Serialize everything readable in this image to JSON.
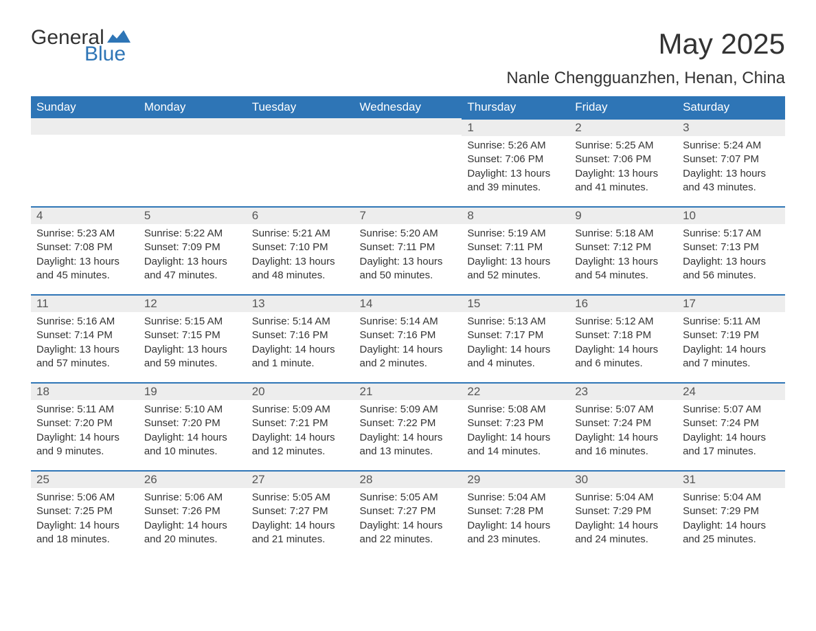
{
  "logo": {
    "text_general": "General",
    "text_blue": "Blue"
  },
  "title": "May 2025",
  "subtitle": "Nanle Chengguanzhen, Henan, China",
  "colors": {
    "header_bg": "#2e75b6",
    "header_text": "#ffffff",
    "daynum_bg": "#ededed",
    "row_border": "#2e75b6",
    "body_text": "#333333",
    "logo_blue": "#2e75b6"
  },
  "weekdays": [
    "Sunday",
    "Monday",
    "Tuesday",
    "Wednesday",
    "Thursday",
    "Friday",
    "Saturday"
  ],
  "weeks": [
    [
      null,
      null,
      null,
      null,
      {
        "n": "1",
        "sunrise": "5:26 AM",
        "sunset": "7:06 PM",
        "daylight": "13 hours and 39 minutes."
      },
      {
        "n": "2",
        "sunrise": "5:25 AM",
        "sunset": "7:06 PM",
        "daylight": "13 hours and 41 minutes."
      },
      {
        "n": "3",
        "sunrise": "5:24 AM",
        "sunset": "7:07 PM",
        "daylight": "13 hours and 43 minutes."
      }
    ],
    [
      {
        "n": "4",
        "sunrise": "5:23 AM",
        "sunset": "7:08 PM",
        "daylight": "13 hours and 45 minutes."
      },
      {
        "n": "5",
        "sunrise": "5:22 AM",
        "sunset": "7:09 PM",
        "daylight": "13 hours and 47 minutes."
      },
      {
        "n": "6",
        "sunrise": "5:21 AM",
        "sunset": "7:10 PM",
        "daylight": "13 hours and 48 minutes."
      },
      {
        "n": "7",
        "sunrise": "5:20 AM",
        "sunset": "7:11 PM",
        "daylight": "13 hours and 50 minutes."
      },
      {
        "n": "8",
        "sunrise": "5:19 AM",
        "sunset": "7:11 PM",
        "daylight": "13 hours and 52 minutes."
      },
      {
        "n": "9",
        "sunrise": "5:18 AM",
        "sunset": "7:12 PM",
        "daylight": "13 hours and 54 minutes."
      },
      {
        "n": "10",
        "sunrise": "5:17 AM",
        "sunset": "7:13 PM",
        "daylight": "13 hours and 56 minutes."
      }
    ],
    [
      {
        "n": "11",
        "sunrise": "5:16 AM",
        "sunset": "7:14 PM",
        "daylight": "13 hours and 57 minutes."
      },
      {
        "n": "12",
        "sunrise": "5:15 AM",
        "sunset": "7:15 PM",
        "daylight": "13 hours and 59 minutes."
      },
      {
        "n": "13",
        "sunrise": "5:14 AM",
        "sunset": "7:16 PM",
        "daylight": "14 hours and 1 minute."
      },
      {
        "n": "14",
        "sunrise": "5:14 AM",
        "sunset": "7:16 PM",
        "daylight": "14 hours and 2 minutes."
      },
      {
        "n": "15",
        "sunrise": "5:13 AM",
        "sunset": "7:17 PM",
        "daylight": "14 hours and 4 minutes."
      },
      {
        "n": "16",
        "sunrise": "5:12 AM",
        "sunset": "7:18 PM",
        "daylight": "14 hours and 6 minutes."
      },
      {
        "n": "17",
        "sunrise": "5:11 AM",
        "sunset": "7:19 PM",
        "daylight": "14 hours and 7 minutes."
      }
    ],
    [
      {
        "n": "18",
        "sunrise": "5:11 AM",
        "sunset": "7:20 PM",
        "daylight": "14 hours and 9 minutes."
      },
      {
        "n": "19",
        "sunrise": "5:10 AM",
        "sunset": "7:20 PM",
        "daylight": "14 hours and 10 minutes."
      },
      {
        "n": "20",
        "sunrise": "5:09 AM",
        "sunset": "7:21 PM",
        "daylight": "14 hours and 12 minutes."
      },
      {
        "n": "21",
        "sunrise": "5:09 AM",
        "sunset": "7:22 PM",
        "daylight": "14 hours and 13 minutes."
      },
      {
        "n": "22",
        "sunrise": "5:08 AM",
        "sunset": "7:23 PM",
        "daylight": "14 hours and 14 minutes."
      },
      {
        "n": "23",
        "sunrise": "5:07 AM",
        "sunset": "7:24 PM",
        "daylight": "14 hours and 16 minutes."
      },
      {
        "n": "24",
        "sunrise": "5:07 AM",
        "sunset": "7:24 PM",
        "daylight": "14 hours and 17 minutes."
      }
    ],
    [
      {
        "n": "25",
        "sunrise": "5:06 AM",
        "sunset": "7:25 PM",
        "daylight": "14 hours and 18 minutes."
      },
      {
        "n": "26",
        "sunrise": "5:06 AM",
        "sunset": "7:26 PM",
        "daylight": "14 hours and 20 minutes."
      },
      {
        "n": "27",
        "sunrise": "5:05 AM",
        "sunset": "7:27 PM",
        "daylight": "14 hours and 21 minutes."
      },
      {
        "n": "28",
        "sunrise": "5:05 AM",
        "sunset": "7:27 PM",
        "daylight": "14 hours and 22 minutes."
      },
      {
        "n": "29",
        "sunrise": "5:04 AM",
        "sunset": "7:28 PM",
        "daylight": "14 hours and 23 minutes."
      },
      {
        "n": "30",
        "sunrise": "5:04 AM",
        "sunset": "7:29 PM",
        "daylight": "14 hours and 24 minutes."
      },
      {
        "n": "31",
        "sunrise": "5:04 AM",
        "sunset": "7:29 PM",
        "daylight": "14 hours and 25 minutes."
      }
    ]
  ],
  "labels": {
    "sunrise": "Sunrise: ",
    "sunset": "Sunset: ",
    "daylight": "Daylight: "
  }
}
